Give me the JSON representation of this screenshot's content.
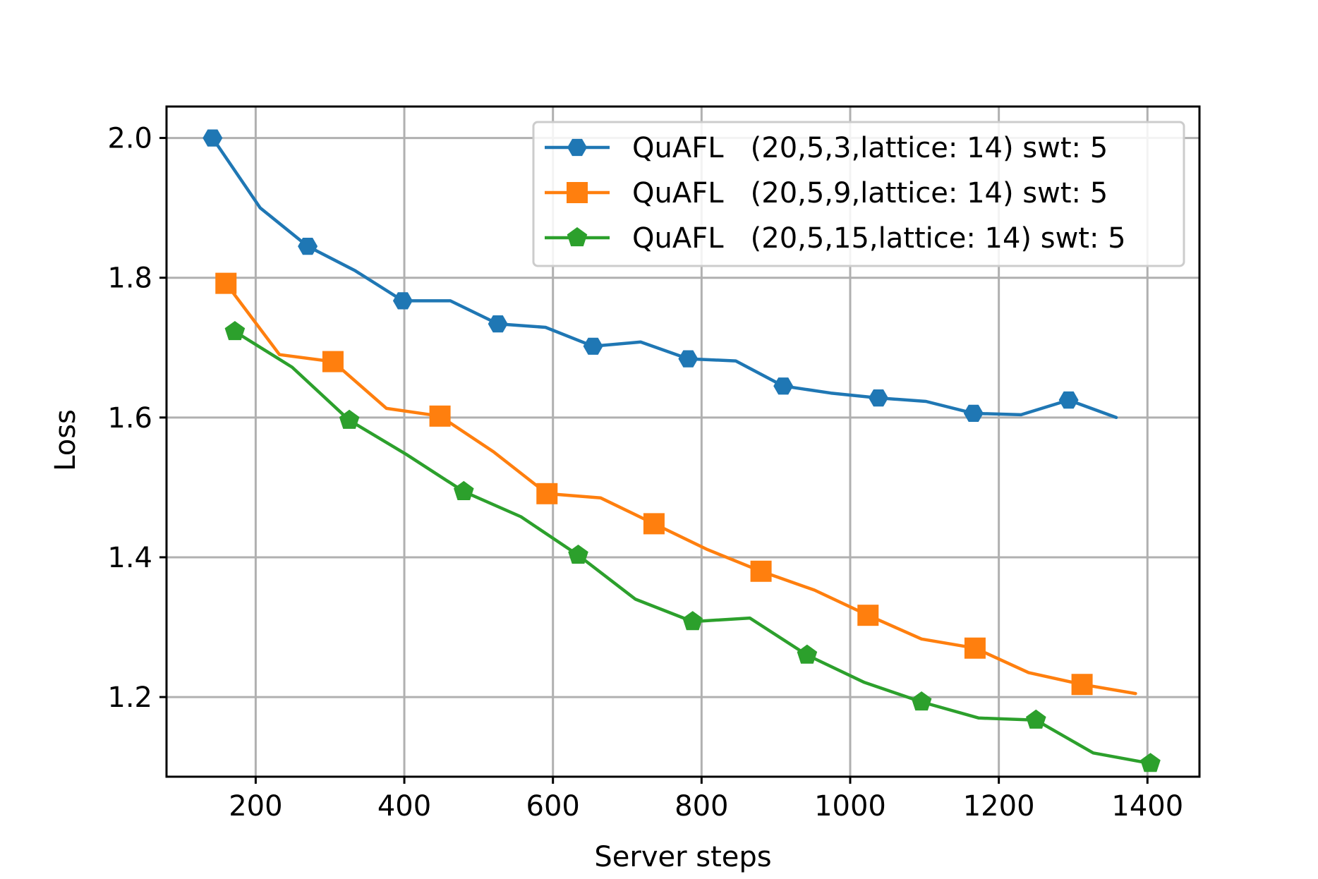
{
  "chart_data": {
    "type": "line",
    "title": "",
    "xlabel": "Server steps",
    "ylabel": "Loss",
    "xlim": [
      80,
      1470
    ],
    "ylim": [
      1.086,
      2.045
    ],
    "xticks": [
      200,
      400,
      600,
      800,
      1000,
      1200,
      1400
    ],
    "xtick_labels": [
      "200",
      "400",
      "600",
      "800",
      "1000",
      "1200",
      "1400"
    ],
    "yticks": [
      1.2,
      1.4,
      1.6,
      1.8,
      2.0
    ],
    "ytick_labels": [
      "1.2",
      "1.4",
      "1.6",
      "1.8",
      "2.0"
    ],
    "grid": true,
    "legend_position": "upper right",
    "series": [
      {
        "name": "QuAFL   (20,5,3,lattice: 14) swt: 5",
        "color": "#1f77b4",
        "marker": "hexagon",
        "x": [
          142,
          206,
          270,
          334,
          398,
          462,
          526,
          590,
          654,
          718,
          782,
          846,
          910,
          974,
          1038,
          1102,
          1166,
          1230,
          1294,
          1358
        ],
        "y": [
          2.0,
          1.9,
          1.845,
          1.81,
          1.767,
          1.767,
          1.734,
          1.729,
          1.702,
          1.708,
          1.684,
          1.681,
          1.645,
          1.635,
          1.628,
          1.623,
          1.606,
          1.604,
          1.625,
          1.6
        ]
      },
      {
        "name": "QuAFL   (20,5,9,lattice: 14) swt: 5",
        "color": "#ff7f0e",
        "marker": "square",
        "x": [
          160,
          232,
          304,
          376,
          448,
          520,
          592,
          664,
          736,
          808,
          880,
          952,
          1024,
          1096,
          1168,
          1240,
          1312,
          1384
        ],
        "y": [
          1.792,
          1.69,
          1.68,
          1.613,
          1.602,
          1.551,
          1.491,
          1.485,
          1.448,
          1.411,
          1.38,
          1.353,
          1.317,
          1.283,
          1.27,
          1.235,
          1.218,
          1.205
        ]
      },
      {
        "name": "QuAFL   (20,5,15,lattice: 14) swt: 5",
        "color": "#2ca02c",
        "marker": "pentagon",
        "x": [
          172,
          249,
          326,
          403,
          480,
          557,
          634,
          711,
          788,
          865,
          942,
          1019,
          1096,
          1173,
          1250,
          1327,
          1404
        ],
        "y": [
          1.723,
          1.672,
          1.596,
          1.547,
          1.494,
          1.458,
          1.403,
          1.34,
          1.308,
          1.313,
          1.26,
          1.221,
          1.193,
          1.17,
          1.167,
          1.12,
          1.105
        ]
      }
    ]
  }
}
